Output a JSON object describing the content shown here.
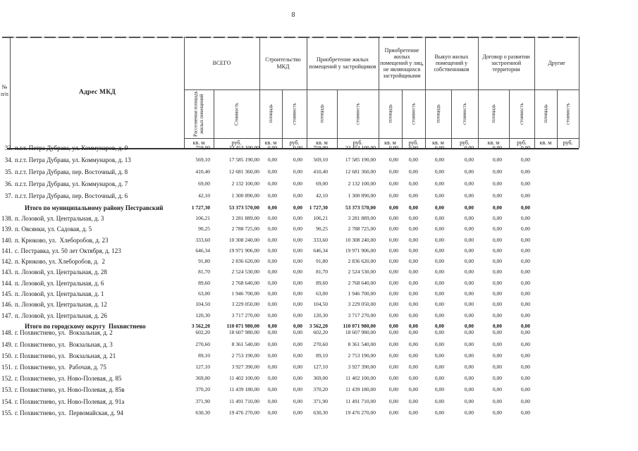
{
  "page": {
    "number": "8"
  },
  "table": {
    "header": {
      "num_label_line1": "№",
      "num_label_line2": "п/п",
      "address_label": "Адрес МКД",
      "groups": [
        {
          "label": "ВСЕГО",
          "sub": [
            "Расселяемая площадь жилых помещений",
            "Стоимость"
          ]
        },
        {
          "label": "Строительство МКД",
          "sub": [
            "площадь",
            "стоимость"
          ]
        },
        {
          "label": "Приобретение жилых помещений у застройщиков",
          "sub": [
            "площадь",
            "стоимость"
          ]
        },
        {
          "label": "Приобретение жилых помещений у лиц, не являющихся застройщиками",
          "sub": [
            "площадь",
            "стоимость"
          ]
        },
        {
          "label": "Выкуп жилых помещений у собственников",
          "sub": [
            "площадь",
            "стоимость"
          ]
        },
        {
          "label": "Договор о развитии застроенной территории",
          "sub": [
            "площадь",
            "стоимость"
          ]
        },
        {
          "label": "Другие",
          "sub": [
            "площадь",
            "стоимость"
          ]
        }
      ],
      "units": [
        "кв. м",
        "руб."
      ]
    },
    "rows": [
      {
        "num": "33.",
        "address": "п.г.т. Петра Дубрава, ул. Коммунаров, д. 9",
        "style": "a",
        "total": false,
        "values": [
          "759,00",
          "23 453 100,00",
          "0,00",
          "0,00",
          "759,00",
          "23 453 100,00",
          "0,00",
          "0,00",
          "0,00",
          "0,00",
          "0,00",
          "0,00",
          "",
          ""
        ]
      },
      {
        "num": "34.",
        "address": "п.г.т. Петра Дубрава, ул. Коммунаров, д. 13",
        "style": "a",
        "total": false,
        "values": [
          "569,10",
          "17 585 190,00",
          "0,00",
          "0,00",
          "569,10",
          "17 585 190,00",
          "0,00",
          "0,00",
          "0,00",
          "0,00",
          "0,00",
          "0,00",
          "",
          ""
        ]
      },
      {
        "num": "35.",
        "address": "п.г.т. Петра Дубрава, пер. Восточный, д. 8",
        "style": "a",
        "total": false,
        "values": [
          "410,40",
          "12 681 360,00",
          "0,00",
          "0,00",
          "410,40",
          "12 681 360,00",
          "0,00",
          "0,00",
          "0,00",
          "0,00",
          "0,00",
          "0,00",
          "",
          ""
        ]
      },
      {
        "num": "36.",
        "address": "п.г.т. Петра Дубрава, ул. Коммунаров, д. 7",
        "style": "a",
        "total": false,
        "values": [
          "69,00",
          "2 132 100,00",
          "0,00",
          "0,00",
          "69,00",
          "2 132 100,00",
          "0,00",
          "0,00",
          "0,00",
          "0,00",
          "0,00",
          "0,00",
          "",
          ""
        ]
      },
      {
        "num": "37.",
        "address": "п.г.т. Петра Дубрава, пер. Восточный, д. 6",
        "style": "a",
        "total": false,
        "values": [
          "42,10",
          "1 300 890,00",
          "0,00",
          "0,00",
          "42,10",
          "1 300 890,00",
          "0,00",
          "0,00",
          "0,00",
          "0,00",
          "0,00",
          "0,00",
          "",
          ""
        ]
      },
      {
        "num": "",
        "address": "Итого по муниципальному району Пестравский",
        "style": "t",
        "total": true,
        "values": [
          "1 727,30",
          "53 373 570,00",
          "0,00",
          "0,00",
          "1 727,30",
          "53 373 570,00",
          "0,00",
          "0,00",
          "0,00",
          "0,00",
          "0,00",
          "0,00",
          "",
          ""
        ]
      },
      {
        "num": "138.",
        "address": "п. Лозовой, ул. Центральная, д. 3",
        "style": "b",
        "total": false,
        "values": [
          "106,21",
          "3 281 889,00",
          "0,00",
          "0,00",
          "106,21",
          "3 281 889,00",
          "0,00",
          "0,00",
          "0,00",
          "0,00",
          "0,00",
          "0,00",
          "",
          ""
        ]
      },
      {
        "num": "139.",
        "address": "п. Овсянки, ул. Садовая, д. 5",
        "style": "b",
        "total": false,
        "values": [
          "90,25",
          "2 788 725,00",
          "0,00",
          "0,00",
          "90,25",
          "2 788 725,00",
          "0,00",
          "0,00",
          "0,00",
          "0,00",
          "0,00",
          "0,00",
          "",
          ""
        ]
      },
      {
        "num": "140.",
        "address": "п. Крюково, ул.  Хлеборобов, д. 23",
        "style": "b",
        "total": false,
        "values": [
          "333,60",
          "10 308 240,00",
          "0,00",
          "0,00",
          "333,60",
          "10 308 240,00",
          "0,00",
          "0,00",
          "0,00",
          "0,00",
          "0,00",
          "0,00",
          "",
          ""
        ]
      },
      {
        "num": "141.",
        "address": "с. Пестравка, ул. 50 лет Октября, д. 123",
        "style": "b",
        "total": false,
        "values": [
          "646,34",
          "19 971 906,00",
          "0,00",
          "0,00",
          "646,34",
          "19 971 906,00",
          "0,00",
          "0,00",
          "0,00",
          "0,00",
          "0,00",
          "0,00",
          "",
          ""
        ]
      },
      {
        "num": "142.",
        "address": "п. Крюково, ул. Хлеборобов, д.  2",
        "style": "b",
        "total": false,
        "values": [
          "91,80",
          "2 836 620,00",
          "0,00",
          "0,00",
          "91,80",
          "2 836 620,00",
          "0,00",
          "0,00",
          "0,00",
          "0,00",
          "0,00",
          "0,00",
          "",
          ""
        ]
      },
      {
        "num": "143.",
        "address": "п. Лозовой, ул. Центральная, д. 28",
        "style": "b",
        "total": false,
        "values": [
          "81,70",
          "2 524 530,00",
          "0,00",
          "0,00",
          "81,70",
          "2 524 530,00",
          "0,00",
          "0,00",
          "0,00",
          "0,00",
          "0,00",
          "0,00",
          "",
          ""
        ]
      },
      {
        "num": "144.",
        "address": "п. Лозовой, ул. Центральная, д. 6",
        "style": "b",
        "total": false,
        "values": [
          "89,60",
          "2 768 640,00",
          "0,00",
          "0,00",
          "89,60",
          "2 768 640,00",
          "0,00",
          "0,00",
          "0,00",
          "0,00",
          "0,00",
          "0,00",
          "",
          ""
        ]
      },
      {
        "num": "145.",
        "address": "п. Лозовой, ул. Центральная, д. 1",
        "style": "b",
        "total": false,
        "values": [
          "63,00",
          "1 946 700,00",
          "0,00",
          "0,00",
          "63,00",
          "1 946 700,00",
          "0,00",
          "0,00",
          "0,00",
          "0,00",
          "0,00",
          "0,00",
          "",
          ""
        ]
      },
      {
        "num": "146.",
        "address": "п. Лозовой, ул. Центральная, д. 12",
        "style": "b",
        "total": false,
        "values": [
          "104,50",
          "3 229 050,00",
          "0,00",
          "0,00",
          "104,50",
          "3 229 050,00",
          "0,00",
          "0,00",
          "0,00",
          "0,00",
          "0,00",
          "0,00",
          "",
          ""
        ]
      },
      {
        "num": "147.",
        "address": "п. Лозовой, ул. Центральная, д. 26",
        "style": "b",
        "total": false,
        "values": [
          "120,30",
          "3 717 270,00",
          "0,00",
          "0,00",
          "120,30",
          "3 717 270,00",
          "0,00",
          "0,00",
          "0,00",
          "0,00",
          "0,00",
          "0,00",
          "",
          ""
        ]
      },
      {
        "num": "",
        "address": "Итого по городскому округу  Похвистнево",
        "style": "t2",
        "total": true,
        "values": [
          "3 562,20",
          "110 071 980,00",
          "0,00",
          "0,00",
          "3 562,20",
          "110 071 980,00",
          "0,00",
          "0,00",
          "0,00",
          "0,00",
          "0,00",
          "0,00",
          "",
          ""
        ]
      },
      {
        "num": "148.",
        "address": "г. Похвистнево, ул.  Вокзальная, д. 2",
        "style": "c",
        "total": false,
        "values": [
          "602,20",
          "18 607 980,00",
          "0,00",
          "0,00",
          "602,20",
          "18 607 980,00",
          "0,00",
          "0,00",
          "0,00",
          "0,00",
          "0,00",
          "0,00",
          "",
          ""
        ]
      },
      {
        "num": "149.",
        "address": "г. Похвистнево, ул.  Вокзальная, д. 3",
        "style": "c",
        "total": false,
        "values": [
          "270,60",
          "8 361 540,00",
          "0,00",
          "0,00",
          "270,60",
          "8 361 540,00",
          "0,00",
          "0,00",
          "0,00",
          "0,00",
          "0,00",
          "0,00",
          "",
          ""
        ]
      },
      {
        "num": "150.",
        "address": "г. Похвистнево, ул.  Вокзальная, д. 21",
        "style": "c",
        "total": false,
        "values": [
          "89,10",
          "2 753 190,00",
          "0,00",
          "0,00",
          "89,10",
          "2 753 190,00",
          "0,00",
          "0,00",
          "0,00",
          "0,00",
          "0,00",
          "0,00",
          "",
          ""
        ]
      },
      {
        "num": "151.",
        "address": "г. Похвистнево, ул.  Рабочая, д. 75",
        "style": "c",
        "total": false,
        "values": [
          "127,10",
          "3 927 390,00",
          "0,00",
          "0,00",
          "127,10",
          "3 927 390,00",
          "0,00",
          "0,00",
          "0,00",
          "0,00",
          "0,00",
          "0,00",
          "",
          ""
        ]
      },
      {
        "num": "152.",
        "address": "г. Похвистнево, ул. Ново-Полевая, д. 85",
        "style": "c",
        "total": false,
        "values": [
          "369,00",
          "11 402 100,00",
          "0,00",
          "0,00",
          "369,00",
          "11 402 100,00",
          "0,00",
          "0,00",
          "0,00",
          "0,00",
          "0,00",
          "0,00",
          "",
          ""
        ]
      },
      {
        "num": "153.",
        "address": "г. Похвистнево, ул. Ново-Полевая, д. 85в",
        "style": "c",
        "total": false,
        "values": [
          "370,20",
          "11 439 180,00",
          "0,00",
          "0,00",
          "370,20",
          "11 439 180,00",
          "0,00",
          "0,00",
          "0,00",
          "0,00",
          "0,00",
          "0,00",
          "",
          ""
        ]
      },
      {
        "num": "154.",
        "address": "г. Похвистнево, ул. Ново-Полевая, д. 91а",
        "style": "c",
        "total": false,
        "values": [
          "371,90",
          "11 491 710,00",
          "0,00",
          "0,00",
          "371,90",
          "11 491 710,00",
          "0,00",
          "0,00",
          "0,00",
          "0,00",
          "0,00",
          "0,00",
          "",
          ""
        ]
      },
      {
        "num": "155.",
        "address": "г. Похвистнево, ул.  Первомайская, д. 94",
        "style": "c",
        "total": false,
        "values": [
          "630,30",
          "19 476 270,00",
          "0,00",
          "0,00",
          "630,30",
          "19 476 270,00",
          "0,00",
          "0,00",
          "0,00",
          "0,00",
          "0,00",
          "0,00",
          "",
          ""
        ]
      }
    ]
  }
}
